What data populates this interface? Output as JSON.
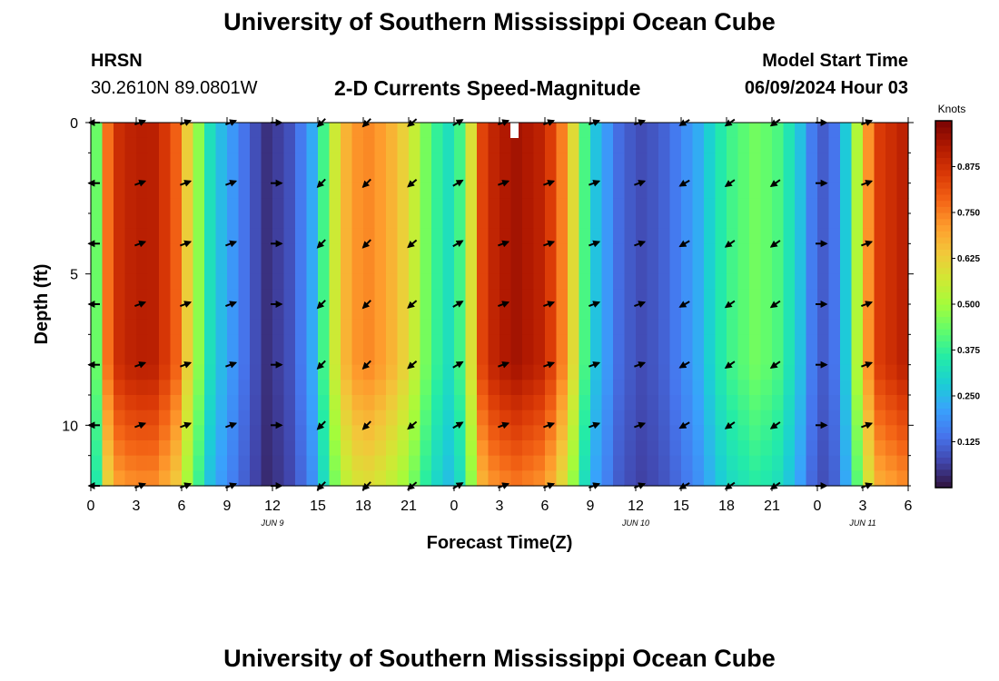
{
  "header": {
    "title": "University of Southern Mississippi Ocean Cube",
    "station": "HRSN",
    "coords": "30.2610N  89.0801W",
    "plot_title": "2-D Currents Speed-Magnitude",
    "model_start_label": "Model Start Time",
    "model_start_value": "06/09/2024 Hour 03"
  },
  "footer": {
    "title": "University of Southern Mississippi Ocean Cube"
  },
  "chart_data": {
    "type": "heatmap",
    "title": "2-D Currents Speed-Magnitude",
    "xlabel": "Forecast Time(Z)",
    "ylabel": "Depth (ft)",
    "x_hours": [
      0,
      54
    ],
    "ylim": [
      0,
      12
    ],
    "y_inverted": true,
    "x_ticks": [
      "0",
      "3",
      "6",
      "9",
      "12",
      "15",
      "18",
      "21",
      "0",
      "3",
      "6",
      "9",
      "12",
      "15",
      "18",
      "21",
      "0",
      "3",
      "6"
    ],
    "y_ticks": [
      0,
      5,
      10
    ],
    "date_labels": [
      {
        "hour": 12,
        "label": "JUN 9"
      },
      {
        "hour": 36,
        "label": "JUN 10"
      },
      {
        "hour": 51,
        "label": "JUN 11"
      }
    ],
    "colorbar": {
      "label": "Knots",
      "range": [
        0,
        1.0
      ],
      "ticks": [
        "0.125",
        "0.250",
        "0.375",
        "0.500",
        "0.625",
        "0.750",
        "0.875"
      ],
      "colors": [
        "#30123b",
        "#4145ab",
        "#4675ed",
        "#39a2fc",
        "#1bcfd4",
        "#24eca6",
        "#61fc6c",
        "#a4fc3b",
        "#d1e834",
        "#f3c63a",
        "#fe9b2d",
        "#f36315",
        "#d93806",
        "#b11901",
        "#7a0403"
      ]
    },
    "speed_profile_knots": [
      {
        "h": 0,
        "v": 0.25
      },
      {
        "h": 1,
        "v": 0.75
      },
      {
        "h": 2,
        "v": 0.9
      },
      {
        "h": 4,
        "v": 0.92
      },
      {
        "h": 5.5,
        "v": 0.82
      },
      {
        "h": 6.5,
        "v": 0.6
      },
      {
        "h": 8,
        "v": 0.3
      },
      {
        "h": 10,
        "v": 0.15
      },
      {
        "h": 11.5,
        "v": 0.04
      },
      {
        "h": 13,
        "v": 0.08
      },
      {
        "h": 14.5,
        "v": 0.2
      },
      {
        "h": 15.5,
        "v": 0.42
      },
      {
        "h": 16.5,
        "v": 0.65
      },
      {
        "h": 18,
        "v": 0.75
      },
      {
        "h": 19.5,
        "v": 0.7
      },
      {
        "h": 21,
        "v": 0.6
      },
      {
        "h": 22.5,
        "v": 0.4
      },
      {
        "h": 24,
        "v": 0.3
      },
      {
        "h": 25,
        "v": 0.55
      },
      {
        "h": 26,
        "v": 0.88
      },
      {
        "h": 28,
        "v": 0.95
      },
      {
        "h": 30,
        "v": 0.9
      },
      {
        "h": 31.5,
        "v": 0.7
      },
      {
        "h": 33,
        "v": 0.3
      },
      {
        "h": 35,
        "v": 0.12
      },
      {
        "h": 36.5,
        "v": 0.08
      },
      {
        "h": 38,
        "v": 0.12
      },
      {
        "h": 40,
        "v": 0.22
      },
      {
        "h": 42,
        "v": 0.38
      },
      {
        "h": 44,
        "v": 0.45
      },
      {
        "h": 45.5,
        "v": 0.4
      },
      {
        "h": 47,
        "v": 0.25
      },
      {
        "h": 48,
        "v": 0.1
      },
      {
        "h": 49,
        "v": 0.12
      },
      {
        "h": 50,
        "v": 0.3
      },
      {
        "h": 51,
        "v": 0.65
      },
      {
        "h": 52,
        "v": 0.85
      },
      {
        "h": 54,
        "v": 0.92
      }
    ],
    "vector_rows_ft": [
      0,
      2,
      4,
      6,
      8,
      10,
      12
    ],
    "vector_hours": [
      0,
      3,
      6,
      9,
      12,
      15,
      18,
      21,
      24,
      27,
      30,
      33,
      36,
      39,
      42,
      45,
      48,
      51
    ],
    "vector_angles_deg": [
      180,
      20,
      20,
      20,
      0,
      225,
      225,
      220,
      30,
      20,
      20,
      20,
      20,
      210,
      215,
      215,
      0,
      20
    ]
  }
}
